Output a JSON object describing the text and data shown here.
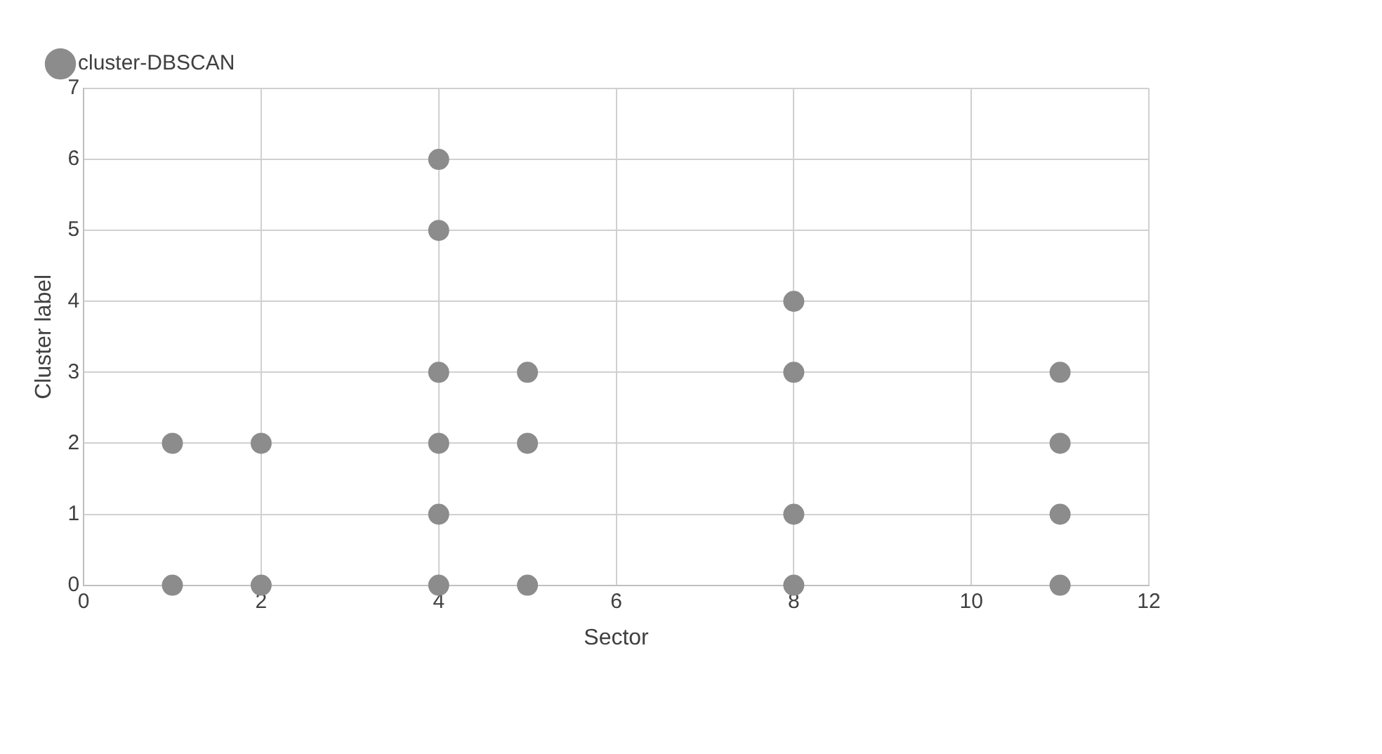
{
  "chart_data": {
    "type": "scatter",
    "xlabel": "Sector",
    "ylabel": "Cluster label",
    "series": [
      {
        "name": "cluster-DBSCAN",
        "color": "#8c8c8c",
        "x": [
          1,
          1,
          2,
          2,
          4,
          4,
          4,
          4,
          4,
          4,
          5,
          5,
          5,
          8,
          8,
          8,
          8,
          11,
          11,
          11,
          11
        ],
        "values": [
          2,
          0,
          2,
          0,
          6,
          5,
          3,
          2,
          1,
          0,
          3,
          2,
          0,
          4,
          3,
          1,
          0,
          3,
          2,
          1,
          0
        ]
      }
    ],
    "xlim": [
      0,
      12
    ],
    "xticks": [
      0,
      2,
      4,
      6,
      8,
      10,
      12
    ],
    "ylim": [
      0,
      7
    ],
    "yticks": [
      0,
      1,
      2,
      3,
      4,
      5,
      6,
      7
    ],
    "grid": true,
    "legend": "top left",
    "marker": "circle"
  }
}
